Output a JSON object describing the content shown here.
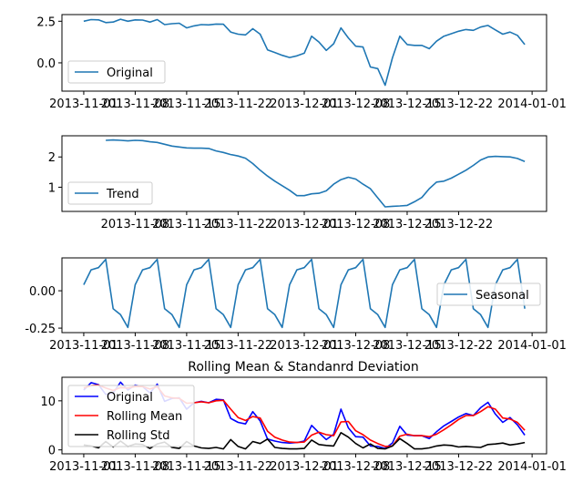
{
  "chart_data": [
    {
      "type": "line",
      "title": "",
      "xlabel": "",
      "ylabel": "",
      "x_ticks": [
        "2013-11-01",
        "2013-11-08",
        "2013-11-15",
        "2013-11-22",
        "2013-12-01",
        "2013-12-08",
        "2013-12-15",
        "2013-12-22",
        "2014-01-01"
      ],
      "y_ticks": [
        "0.0",
        "2.5"
      ],
      "ylim": [
        -1.7,
        2.9
      ],
      "legend_position": "lower-left",
      "series": [
        {
          "name": "Original",
          "color": "#1f77b4",
          "values": [
            2.5,
            2.6,
            2.58,
            2.42,
            2.45,
            2.62,
            2.5,
            2.58,
            2.57,
            2.45,
            2.6,
            2.3,
            2.35,
            2.38,
            2.1,
            2.22,
            2.3,
            2.28,
            2.33,
            2.32,
            1.85,
            1.72,
            1.68,
            2.05,
            1.72,
            0.78,
            0.62,
            0.45,
            0.32,
            0.42,
            0.58,
            1.6,
            1.25,
            0.75,
            1.15,
            2.1,
            1.5,
            1.0,
            0.95,
            -0.25,
            -0.35,
            -1.35,
            0.3,
            1.6,
            1.1,
            1.05,
            1.05,
            0.85,
            1.3,
            1.6,
            1.75,
            1.9,
            2.0,
            1.95,
            2.15,
            2.25,
            1.98,
            1.72,
            1.85,
            1.65,
            1.1
          ]
        }
      ]
    },
    {
      "type": "line",
      "title": "",
      "xlabel": "",
      "ylabel": "",
      "x_ticks": [
        "2013-11-08",
        "2013-11-15",
        "2013-11-22",
        "2013-12-01",
        "2013-12-08",
        "2013-12-15",
        "2013-12-22"
      ],
      "y_ticks": [
        "1",
        "2"
      ],
      "ylim": [
        0.2,
        2.7
      ],
      "legend_position": "lower-left",
      "series": [
        {
          "name": "Trend",
          "color": "#1f77b4",
          "values": [
            2.55,
            2.56,
            2.55,
            2.53,
            2.55,
            2.54,
            2.5,
            2.48,
            2.42,
            2.36,
            2.33,
            2.3,
            2.29,
            2.29,
            2.28,
            2.2,
            2.15,
            2.08,
            2.03,
            1.96,
            1.78,
            1.56,
            1.37,
            1.2,
            1.05,
            0.9,
            0.72,
            0.72,
            0.78,
            0.8,
            0.88,
            1.1,
            1.25,
            1.33,
            1.27,
            1.1,
            0.95,
            0.65,
            0.35,
            0.37,
            0.38,
            0.4,
            0.52,
            0.66,
            0.95,
            1.17,
            1.2,
            1.3,
            1.43,
            1.56,
            1.72,
            1.9,
            2.0,
            2.02,
            2.01,
            2.0,
            1.95,
            1.85
          ]
        }
      ]
    },
    {
      "type": "line",
      "title": "",
      "xlabel": "",
      "ylabel": "",
      "x_ticks": [
        "2013-11-01",
        "2013-11-08",
        "2013-11-15",
        "2013-11-22",
        "2013-12-01",
        "2013-12-08",
        "2013-12-15",
        "2013-12-22",
        "2014-01-01"
      ],
      "y_ticks": [
        "0.00",
        "-0.25"
      ],
      "ylim": [
        -0.28,
        0.22
      ],
      "legend_position": "center-right",
      "series": [
        {
          "name": "Seasonal",
          "color": "#1f77b4",
          "pattern": [
            0.04,
            0.14,
            0.155,
            0.21,
            -0.12,
            -0.16,
            -0.245
          ],
          "points": 61
        }
      ]
    },
    {
      "type": "line",
      "title": "Rolling Mean & Standanrd Deviation",
      "xlabel": "",
      "ylabel": "",
      "x_ticks": [
        "2013-11-01",
        "2013-11-08",
        "2013-11-15",
        "2013-11-22",
        "2013-12-01",
        "2013-12-08",
        "2013-12-15",
        "2013-12-22",
        "2014-01-01"
      ],
      "y_ticks": [
        "0",
        "10"
      ],
      "ylim": [
        -0.8,
        14.8
      ],
      "legend_position": "upper-left",
      "series": [
        {
          "name": "Original",
          "color": "#0000ff",
          "values": [
            12.2,
            13.7,
            13.3,
            11.3,
            11.6,
            13.8,
            12.2,
            13.2,
            12.9,
            11.6,
            13.4,
            9.9,
            10.5,
            10.6,
            8.3,
            9.6,
            9.9,
            9.6,
            10.3,
            10.2,
            6.4,
            5.6,
            5.3,
            7.8,
            5.9,
            2.2,
            1.8,
            1.5,
            1.4,
            1.5,
            1.8,
            5.0,
            3.5,
            2.1,
            3.2,
            8.3,
            4.5,
            2.7,
            2.6,
            0.8,
            0.7,
            0.3,
            1.4,
            4.8,
            3.0,
            2.9,
            2.9,
            2.3,
            3.7,
            4.9,
            5.8,
            6.7,
            7.4,
            7.0,
            8.6,
            9.7,
            7.3,
            5.6,
            6.6,
            5.1,
            3.0
          ]
        },
        {
          "name": "Rolling Mean",
          "color": "#ff0000",
          "values": [
            12.6,
            13.1,
            13.2,
            12.6,
            12.1,
            12.7,
            12.6,
            12.9,
            12.9,
            12.4,
            12.9,
            11.0,
            10.6,
            10.5,
            9.5,
            9.6,
            9.8,
            9.6,
            10.0,
            10.1,
            8.3,
            6.6,
            6.0,
            6.8,
            6.5,
            3.8,
            2.6,
            2.0,
            1.6,
            1.5,
            1.6,
            3.0,
            3.6,
            3.1,
            2.9,
            5.7,
            5.8,
            3.9,
            3.1,
            2.0,
            1.3,
            0.7,
            0.8,
            2.8,
            3.2,
            2.9,
            2.9,
            2.7,
            3.2,
            4.1,
            5.1,
            6.2,
            7.0,
            7.0,
            7.8,
            8.8,
            8.3,
            6.5,
            6.3,
            5.6,
            4.0
          ]
        },
        {
          "name": "Rolling Std",
          "color": "#000000",
          "values": [
            1.0,
            0.8,
            0.4,
            1.7,
            0.6,
            1.8,
            0.7,
            1.2,
            1.1,
            0.3,
            1.2,
            1.6,
            0.5,
            0.3,
            1.7,
            0.8,
            0.4,
            0.3,
            0.5,
            0.2,
            2.1,
            0.7,
            0.2,
            1.7,
            1.3,
            2.2,
            0.5,
            0.3,
            0.2,
            0.2,
            0.3,
            2.0,
            1.1,
            0.9,
            0.8,
            3.5,
            2.6,
            1.3,
            0.4,
            1.2,
            0.3,
            0.2,
            0.8,
            2.3,
            1.3,
            0.2,
            0.2,
            0.4,
            0.8,
            1.0,
            0.9,
            0.6,
            0.7,
            0.6,
            0.5,
            1.1,
            1.2,
            1.4,
            1.0,
            1.2,
            1.5
          ]
        }
      ]
    }
  ]
}
